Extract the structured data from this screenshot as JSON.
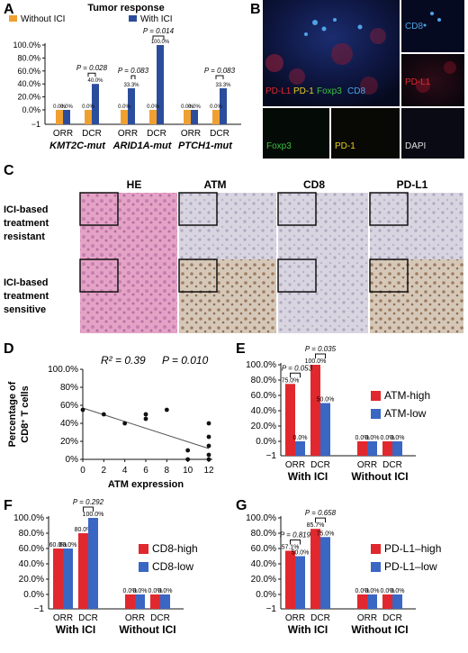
{
  "panels": {
    "A": "A",
    "B": "B",
    "C": "C",
    "D": "D",
    "E": "E",
    "F": "F",
    "G": "G"
  },
  "colors": {
    "orange": "#f0a030",
    "blue": "#2b4d9c",
    "red": "#e0282e",
    "mblue": "#3a66c4",
    "grid": "#333333"
  },
  "chart_data": [
    {
      "id": "A",
      "type": "bar",
      "title": "Tumor response",
      "legend": [
        "Without ICI",
        "With ICI"
      ],
      "legend_position": "top",
      "ylim": [
        0,
        100
      ],
      "yticks": [
        "0.0%",
        "20.0%",
        "40.0%",
        "60.0%",
        "80.0%",
        "100.0%"
      ],
      "y_min_label": "−1",
      "groups": [
        {
          "label": "KMT2C-mut",
          "categories": [
            "ORR",
            "DCR"
          ],
          "without": [
            0,
            0
          ],
          "with": [
            0,
            40
          ],
          "labels_without": [
            "0.0%",
            "0.0%"
          ],
          "labels_with": [
            "0.0%",
            "40.0%"
          ],
          "pvalue": "P = 0.028"
        },
        {
          "label": "ARID1A-mut",
          "categories": [
            "ORR",
            "DCR"
          ],
          "without": [
            0,
            0
          ],
          "with": [
            33.3,
            100
          ],
          "labels_without": [
            "0.0%",
            "0.0%"
          ],
          "labels_with": [
            "33.3%",
            "100.0%"
          ],
          "pvalue_orr": "P = 0.083",
          "pvalue_dcr": "P = 0.014"
        },
        {
          "label": "PTCH1-mut",
          "categories": [
            "ORR",
            "DCR"
          ],
          "without": [
            0,
            0
          ],
          "with": [
            0,
            33.3
          ],
          "labels_without": [
            "0.0%",
            "0.0%"
          ],
          "labels_with": [
            "0.0%",
            "33.3%"
          ],
          "pvalue": "P = 0.083"
        }
      ]
    },
    {
      "id": "D",
      "type": "scatter",
      "ylabel": "Percentage of CD8+ T cells",
      "xlabel": "ATM expression",
      "xlim": [
        0,
        12
      ],
      "ylim": [
        0,
        100
      ],
      "xticks": [
        "0",
        "2",
        "4",
        "6",
        "8",
        "10",
        "12"
      ],
      "yticks": [
        "0%",
        "20%",
        "40%",
        "60%",
        "80%",
        "100.0%"
      ],
      "annotation_r2": "R² = 0.39",
      "annotation_p": "P = 0.010",
      "points": [
        [
          0,
          55
        ],
        [
          2,
          50
        ],
        [
          4,
          40
        ],
        [
          6,
          50
        ],
        [
          6,
          45
        ],
        [
          8,
          55
        ],
        [
          10,
          10
        ],
        [
          10,
          0
        ],
        [
          12,
          40
        ],
        [
          12,
          25
        ],
        [
          12,
          15
        ],
        [
          12,
          5
        ],
        [
          12,
          0
        ]
      ],
      "fit": [
        [
          0,
          57
        ],
        [
          12,
          12
        ]
      ]
    },
    {
      "id": "E",
      "type": "bar",
      "series": [
        {
          "name": "ATM-high",
          "values": [
            75,
            100,
            0,
            0
          ]
        },
        {
          "name": "ATM-low",
          "values": [
            0,
            50,
            0,
            0
          ]
        }
      ],
      "value_labels": [
        [
          "75.0%",
          "100.0%",
          "0.0%",
          "0.0%"
        ],
        [
          "0.0%",
          "50.0%",
          "0.0%",
          "0.0%"
        ]
      ],
      "categories": [
        "ORR",
        "DCR",
        "ORR",
        "DCR"
      ],
      "group_labels": [
        "With ICI",
        "Without ICI"
      ],
      "pvalues": [
        "P = 0.053",
        "P = 0.035"
      ],
      "ylim": [
        0,
        100
      ],
      "yticks": [
        "0.0%",
        "20.0%",
        "40.0%",
        "60.0%",
        "80.0%",
        "100.0%"
      ],
      "y_min_label": "−1",
      "legend_position": "right"
    },
    {
      "id": "F",
      "type": "bar",
      "series": [
        {
          "name": "CD8-high",
          "values": [
            60,
            80,
            0,
            0
          ]
        },
        {
          "name": "CD8-low",
          "values": [
            60,
            100,
            0,
            0
          ]
        }
      ],
      "value_labels": [
        [
          "60.0%",
          "80.0%",
          "0.0%",
          "0.0%"
        ],
        [
          "60.0%",
          "100.0%",
          "0.0%",
          "0.0%"
        ]
      ],
      "categories": [
        "ORR",
        "DCR",
        "ORR",
        "DCR"
      ],
      "group_labels": [
        "With ICI",
        "Without ICI"
      ],
      "pvalues": [
        "P = 0.292"
      ],
      "ylim": [
        0,
        100
      ],
      "yticks": [
        "0.0%",
        "20.0%",
        "40.0%",
        "60.0%",
        "80.0%",
        "100.0%"
      ],
      "y_min_label": "−1",
      "legend_position": "right"
    },
    {
      "id": "G",
      "type": "bar",
      "series": [
        {
          "name": "PD-L1–high",
          "values": [
            57.1,
            85.7,
            0,
            0
          ]
        },
        {
          "name": "PD-L1–low",
          "values": [
            50,
            75,
            0,
            0
          ]
        }
      ],
      "value_labels": [
        [
          "57.1%",
          "85.7%",
          "0.0%",
          "0.0%"
        ],
        [
          "50.0%",
          "75.0%",
          "0.0%",
          "0.0%"
        ]
      ],
      "categories": [
        "ORR",
        "DCR",
        "ORR",
        "DCR"
      ],
      "group_labels": [
        "With ICI",
        "Without ICI"
      ],
      "pvalues": [
        "P = 0.819",
        "P = 0.658"
      ],
      "ylim": [
        0,
        100
      ],
      "yticks": [
        "0.0%",
        "20.0%",
        "40.0%",
        "60.0%",
        "80.0%",
        "100.0%"
      ],
      "y_min_label": "−1",
      "legend_position": "right"
    }
  ],
  "panelB": {
    "labels_main": [
      "PD-L1",
      "PD-1",
      "Foxp3",
      "CD8"
    ],
    "label_cd8": "CD8",
    "label_pdl1": "PD-L1",
    "label_foxp3": "Foxp3",
    "label_pd1": "PD-1",
    "label_dapi": "DAPI"
  },
  "panelC": {
    "columns": [
      "HE",
      "ATM",
      "CD8",
      "PD-L1"
    ],
    "rows": [
      "ICI-based treatment resistant",
      "ICI-based treatment sensitive"
    ],
    "row1_line1": "ICI-based",
    "row1_line2": "treatment",
    "row1_line3": "resistant",
    "row2_line1": "ICI-based",
    "row2_line2": "treatment",
    "row2_line3": "sensitive"
  }
}
